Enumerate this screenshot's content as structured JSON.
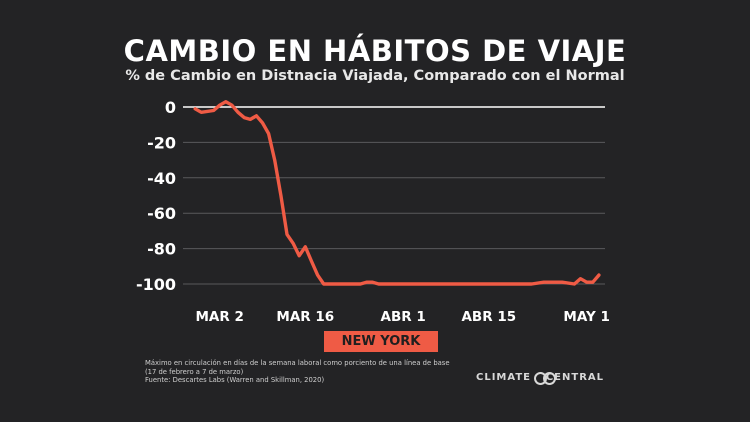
{
  "title": "CAMBIO EN HÁBITOS DE VIAJE",
  "subtitle": "% de Cambio en Distnacia Viajada, Comparado con el Normal",
  "region_label": "NEW YORK",
  "footnote": [
    "Máximo en circulación en días de la semana laboral como porciento de una línea de base",
    "(17 de febrero a 7 de marzo)",
    "Fuente: Descartes Labs (Warren and Skillman, 2020)"
  ],
  "brand": {
    "left": "CLIMATE",
    "right": "CENTRAL",
    "logo": "climate-central-logo-icon"
  },
  "colors": {
    "background": "#232325",
    "line": "#ef5b45",
    "grid": "#5a5a5c",
    "zero_line": "#ffffff",
    "label_bg": "#ef5b45"
  },
  "chart_data": {
    "type": "line",
    "x_unit": "date",
    "xlim": [
      "2020-02-25",
      "2020-05-04"
    ],
    "ylim": [
      -100,
      0
    ],
    "yticks": [
      0,
      -20,
      -40,
      -60,
      -80,
      -100
    ],
    "ytick_labels": [
      "0",
      "-20",
      "-40",
      "-60",
      "-80",
      "-100"
    ],
    "xticks": [
      "2020-03-02",
      "2020-03-16",
      "2020-04-01",
      "2020-04-15",
      "2020-05-01"
    ],
    "xtick_labels": [
      "MAR 2",
      "MAR 16",
      "ABR 1",
      "ABR 15",
      "MAY 1"
    ],
    "grid": true,
    "series": [
      {
        "color": "#ef5b45",
        "x": [
          "2020-02-27",
          "2020-02-28",
          "2020-03-01",
          "2020-03-02",
          "2020-03-03",
          "2020-03-04",
          "2020-03-05",
          "2020-03-06",
          "2020-03-07",
          "2020-03-08",
          "2020-03-09",
          "2020-03-10",
          "2020-03-11",
          "2020-03-12",
          "2020-03-13",
          "2020-03-14",
          "2020-03-15",
          "2020-03-16",
          "2020-03-17",
          "2020-03-18",
          "2020-03-19",
          "2020-03-20",
          "2020-03-21",
          "2020-03-22",
          "2020-03-25",
          "2020-03-26",
          "2020-03-27",
          "2020-03-28",
          "2020-03-29",
          "2020-04-15",
          "2020-04-22",
          "2020-04-24",
          "2020-04-27",
          "2020-04-29",
          "2020-04-30",
          "2020-05-01",
          "2020-05-02",
          "2020-05-03"
        ],
        "values": [
          -1,
          -3,
          -2,
          1,
          3,
          1,
          -3,
          -6,
          -7,
          -5,
          -9,
          -15,
          -30,
          -50,
          -72,
          -77,
          -84,
          -79,
          -87,
          -95,
          -100,
          -100,
          -100,
          -100,
          -100,
          -99,
          -99,
          -100,
          -100,
          -100,
          -100,
          -99,
          -99,
          -100,
          -97,
          -99,
          -99,
          -95
        ]
      }
    ]
  }
}
